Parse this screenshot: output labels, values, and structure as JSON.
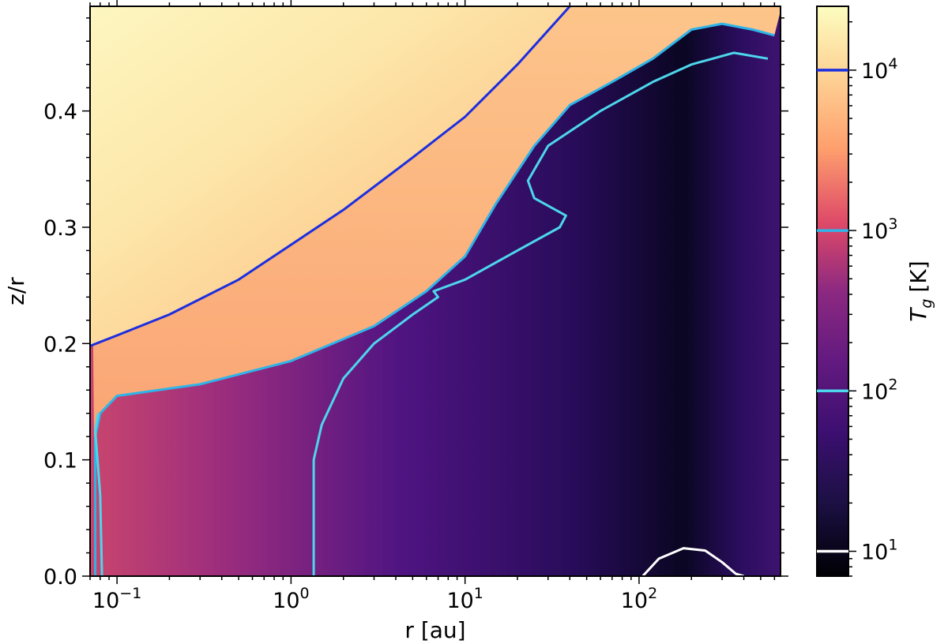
{
  "chart_data": {
    "type": "heatmap",
    "xlabel": "r [au]",
    "ylabel": "z/r",
    "xscale": "log",
    "xlim": [
      0.07,
      650
    ],
    "ylim": [
      0.0,
      0.49
    ],
    "xticks": [
      {
        "value": 0.1,
        "label": "10",
        "exp": "−1"
      },
      {
        "value": 1,
        "label": "10",
        "exp": "0"
      },
      {
        "value": 10,
        "label": "10",
        "exp": "1"
      },
      {
        "value": 100,
        "label": "10",
        "exp": "2"
      }
    ],
    "yticks": [
      {
        "value": 0.0,
        "label": "0.0"
      },
      {
        "value": 0.1,
        "label": "0.1"
      },
      {
        "value": 0.2,
        "label": "0.2"
      },
      {
        "value": 0.3,
        "label": "0.3"
      },
      {
        "value": 0.4,
        "label": "0.4"
      }
    ],
    "colormap": "magma",
    "colorbar": {
      "label": "T",
      "label_sub": "g",
      "label_unit": "[K]",
      "scale": "log",
      "range": [
        7,
        25000
      ],
      "ticks": [
        {
          "value": 10,
          "label": "10",
          "exp": "1",
          "color": "#ffffff"
        },
        {
          "value": 100,
          "label": "10",
          "exp": "2",
          "color": "#4dd6ec"
        },
        {
          "value": 1000,
          "label": "10",
          "exp": "3",
          "color": "#2fb4e8"
        },
        {
          "value": 10000,
          "label": "10",
          "exp": "4",
          "color": "#1b2ee0"
        }
      ]
    },
    "contours": [
      {
        "level": 10000,
        "color": "#1b2ee0",
        "points": [
          [
            0.07,
            0.198
          ],
          [
            0.1,
            0.207
          ],
          [
            0.2,
            0.225
          ],
          [
            0.5,
            0.255
          ],
          [
            1,
            0.285
          ],
          [
            2,
            0.315
          ],
          [
            5,
            0.36
          ],
          [
            10,
            0.395
          ],
          [
            20,
            0.44
          ],
          [
            40,
            0.49
          ]
        ]
      },
      {
        "level": 1000,
        "color": "#2fb4e8",
        "points": [
          [
            0.075,
            0.0
          ],
          [
            0.075,
            0.12
          ],
          [
            0.08,
            0.14
          ],
          [
            0.1,
            0.155
          ],
          [
            0.3,
            0.165
          ],
          [
            1,
            0.185
          ],
          [
            3,
            0.215
          ],
          [
            6,
            0.245
          ],
          [
            10,
            0.275
          ],
          [
            15,
            0.32
          ],
          [
            25,
            0.37
          ],
          [
            40,
            0.405
          ],
          [
            70,
            0.425
          ],
          [
            120,
            0.445
          ],
          [
            200,
            0.47
          ],
          [
            300,
            0.475
          ],
          [
            450,
            0.47
          ],
          [
            600,
            0.465
          ]
        ]
      },
      {
        "level": 100,
        "color": "#4dd6ec",
        "points": [
          [
            0.082,
            0.0
          ],
          [
            0.08,
            0.07
          ],
          [
            0.075,
            0.125
          ],
          [
            0.078,
            0.14
          ]
        ]
      },
      {
        "level": 100,
        "color": "#4dd6ec",
        "points": [
          [
            1.35,
            0.0
          ],
          [
            1.35,
            0.1
          ],
          [
            1.5,
            0.13
          ],
          [
            2,
            0.17
          ],
          [
            3,
            0.2
          ],
          [
            5,
            0.225
          ],
          [
            7,
            0.24
          ],
          [
            6.6,
            0.245
          ],
          [
            10,
            0.255
          ],
          [
            20,
            0.28
          ],
          [
            35,
            0.3
          ],
          [
            38,
            0.31
          ],
          [
            25,
            0.325
          ],
          [
            23,
            0.34
          ],
          [
            30,
            0.37
          ],
          [
            60,
            0.4
          ],
          [
            120,
            0.425
          ],
          [
            200,
            0.44
          ],
          [
            350,
            0.45
          ],
          [
            550,
            0.445
          ]
        ]
      },
      {
        "level": 10,
        "color": "#ffffff",
        "points": [
          [
            105,
            0.0
          ],
          [
            130,
            0.015
          ],
          [
            180,
            0.024
          ],
          [
            240,
            0.022
          ],
          [
            300,
            0.012
          ],
          [
            360,
            0.002
          ],
          [
            400,
            0.0
          ]
        ]
      }
    ]
  }
}
